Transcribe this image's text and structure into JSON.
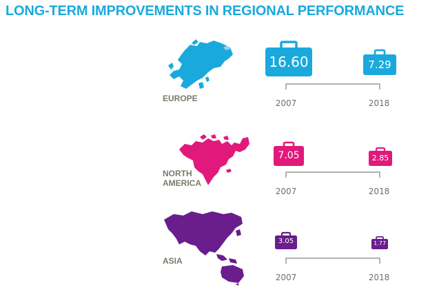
{
  "title": "LONG-TERM IMPROVEMENTS IN REGIONAL PERFORMANCE",
  "colors": {
    "title": "#1aa9dc",
    "europe": "#1aa9dc",
    "north_america": "#e0197a",
    "asia": "#6a1d8c",
    "label": "#7a7a6e",
    "bracket": "#9a9a90"
  },
  "icons": {
    "value_marker": "briefcase-icon",
    "region_map": "region-map-icon"
  },
  "chart_data": {
    "type": "bar",
    "categories": [
      "2007",
      "2018"
    ],
    "series": [
      {
        "name": "EUROPE",
        "values": [
          16.6,
          7.29
        ]
      },
      {
        "name": "NORTH AMERICA",
        "values": [
          7.05,
          2.85
        ]
      },
      {
        "name": "ASIA",
        "values": [
          3.05,
          1.77
        ]
      }
    ],
    "value_labels": [
      [
        "16.60",
        "7.29"
      ],
      [
        "7.05",
        "2.85"
      ],
      [
        "3.05",
        "1.77"
      ]
    ],
    "marker": "briefcase",
    "size_encodes_value": true
  },
  "regions": [
    {
      "label_lines": [
        "EUROPE"
      ],
      "values": [
        "16.60",
        "7.29"
      ],
      "years": [
        "2007",
        "2018"
      ]
    },
    {
      "label_lines": [
        "NORTH",
        "AMERICA"
      ],
      "values": [
        "7.05",
        "2.85"
      ],
      "years": [
        "2007",
        "2018"
      ]
    },
    {
      "label_lines": [
        "ASIA"
      ],
      "values": [
        "3.05",
        "1.77"
      ],
      "years": [
        "2007",
        "2018"
      ]
    }
  ]
}
